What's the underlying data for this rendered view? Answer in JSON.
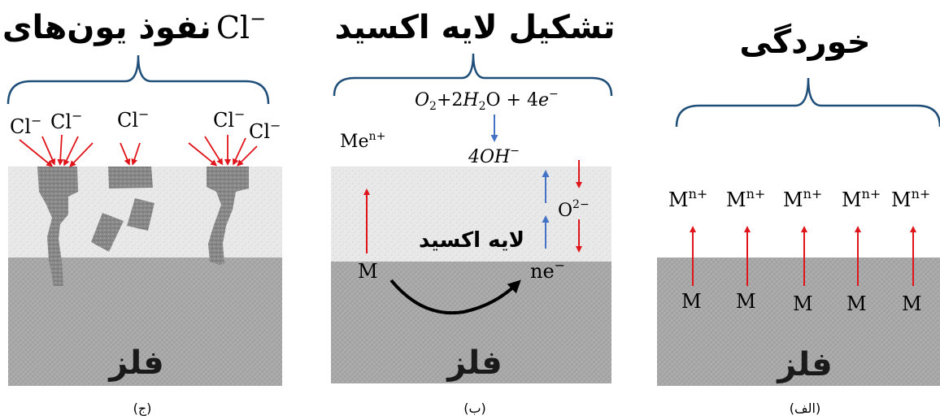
{
  "panels": {
    "alef": {
      "title": "خوردگی",
      "metal": "فلز",
      "caption": "(الف)",
      "ion": "M",
      "ion_sup": "n+",
      "atom": "M"
    },
    "be": {
      "title": "تشکیل لایه اکسید",
      "metal": "فلز",
      "caption": "(ب)",
      "reaction_o2": "O",
      "reaction_o2_sub": "2",
      "reaction_plus2": "+2",
      "reaction_h": "H",
      "reaction_h_sub": "2",
      "reaction_tail": "O + 4",
      "reaction_e": "e",
      "reaction_e_sup": "−",
      "hydroxide": "4OH",
      "hydroxide_sup": "−",
      "me_ion": "Me",
      "me_ion_sup": "n+",
      "oxide_ion": "O",
      "oxide_ion_sup": "2−",
      "oxide_layer": "لایه اکسید",
      "atom": "M",
      "electrons": "ne",
      "electrons_sup": "−"
    },
    "jim": {
      "title_text": "نفوذ یون‌های",
      "title_ion": "Cl",
      "title_ion_sup": "−",
      "metal": "فلز",
      "caption": "(ج)",
      "chloride": "Cl",
      "chloride_sup": "−"
    }
  },
  "colors": {
    "brace": "#1f4e79",
    "red_arrow": "#e0151b",
    "blue_arrow": "#4472c4",
    "metal": "#a8a8a8",
    "oxide": "#e6e6e6",
    "pit": "#7f7f7f"
  }
}
